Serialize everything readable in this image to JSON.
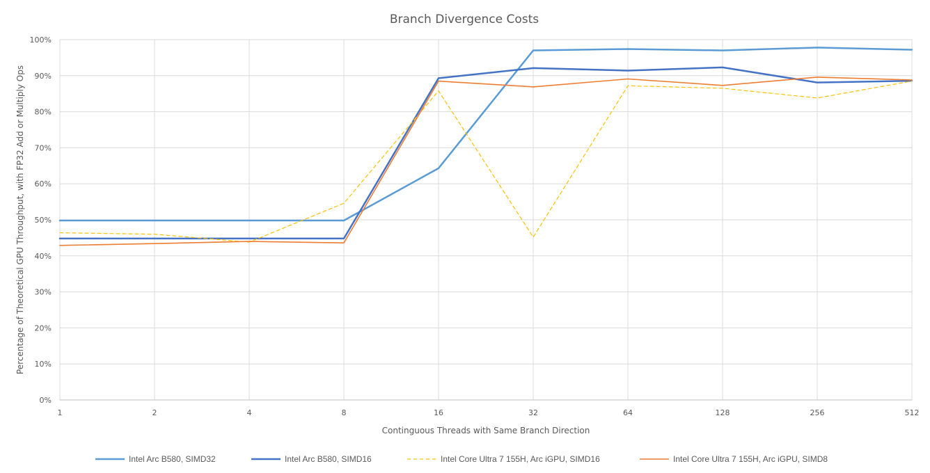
{
  "chart_data": {
    "type": "line",
    "title": "Branch Divergence Costs",
    "xlabel": "Continguous Threads with Same Branch Direction",
    "ylabel": "Percentage of Theoretical GPU Throughput, with FP32 Add or Multiply Ops",
    "x": [
      "1",
      "2",
      "4",
      "8",
      "16",
      "32",
      "64",
      "128",
      "256",
      "512"
    ],
    "y_ticks": [
      "0%",
      "10%",
      "20%",
      "30%",
      "40%",
      "50%",
      "60%",
      "70%",
      "80%",
      "90%",
      "100%"
    ],
    "ylim": [
      0,
      100
    ],
    "y_unit": "percent",
    "grid": "horizontal and vertical",
    "legend_position": "bottom",
    "series": [
      {
        "name": "Intel Arc B580, SIMD32",
        "color": "#5B9BD5",
        "style": "solid",
        "values": [
          49.8,
          49.8,
          49.8,
          49.8,
          64.3,
          97.0,
          97.4,
          97.0,
          97.8,
          97.2
        ]
      },
      {
        "name": "Intel Arc B580, SIMD16",
        "color": "#4472C4",
        "style": "solid",
        "values": [
          44.8,
          44.8,
          44.8,
          44.8,
          89.3,
          92.1,
          91.4,
          92.3,
          88.1,
          88.6
        ]
      },
      {
        "name": "Intel Core Ultra 7 155H, Arc iGPU, SIMD16",
        "color": "#FFC000",
        "style": "dashed",
        "values": [
          46.4,
          46.0,
          43.8,
          54.6,
          85.8,
          45.2,
          87.2,
          86.5,
          83.8,
          88.5
        ]
      },
      {
        "name": "Intel Core Ultra 7 155H, Arc iGPU, SIMD8",
        "color": "#ED7D31",
        "style": "solid",
        "values": [
          42.9,
          43.4,
          44.0,
          43.6,
          88.5,
          86.9,
          89.1,
          87.3,
          89.6,
          88.8
        ]
      }
    ]
  }
}
